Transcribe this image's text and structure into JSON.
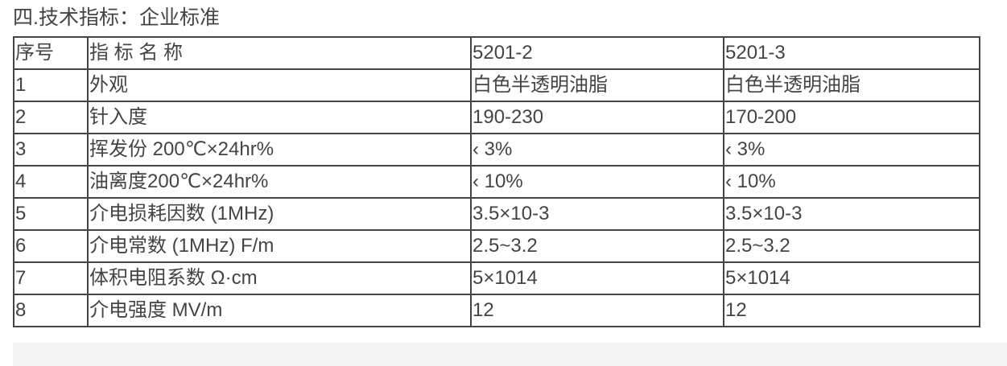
{
  "title": "四.技术指标：企业标准",
  "table": {
    "headers": [
      "序号",
      "指 标 名 称",
      "5201-2",
      "5201-3"
    ],
    "rows": [
      [
        "1",
        "外观",
        "白色半透明油脂",
        "白色半透明油脂"
      ],
      [
        "2",
        "针入度",
        "190-230",
        "170-200"
      ],
      [
        "3",
        "挥发份 200℃×24hr%",
        "‹ 3%",
        "‹ 3%"
      ],
      [
        "4",
        "油离度200℃×24hr%",
        "‹ 10%",
        "‹ 10%"
      ],
      [
        "5",
        "介电损耗因数 (1MHz)",
        "3.5×10-3",
        "3.5×10-3"
      ],
      [
        "6",
        "介电常数 (1MHz) F/m",
        "2.5~3.2",
        "2.5~3.2"
      ],
      [
        "7",
        "体积电阻系数 Ω·cm",
        "5×1014",
        "5×1014"
      ],
      [
        "8",
        "介电强度 MV/m",
        "12",
        "12"
      ]
    ]
  }
}
